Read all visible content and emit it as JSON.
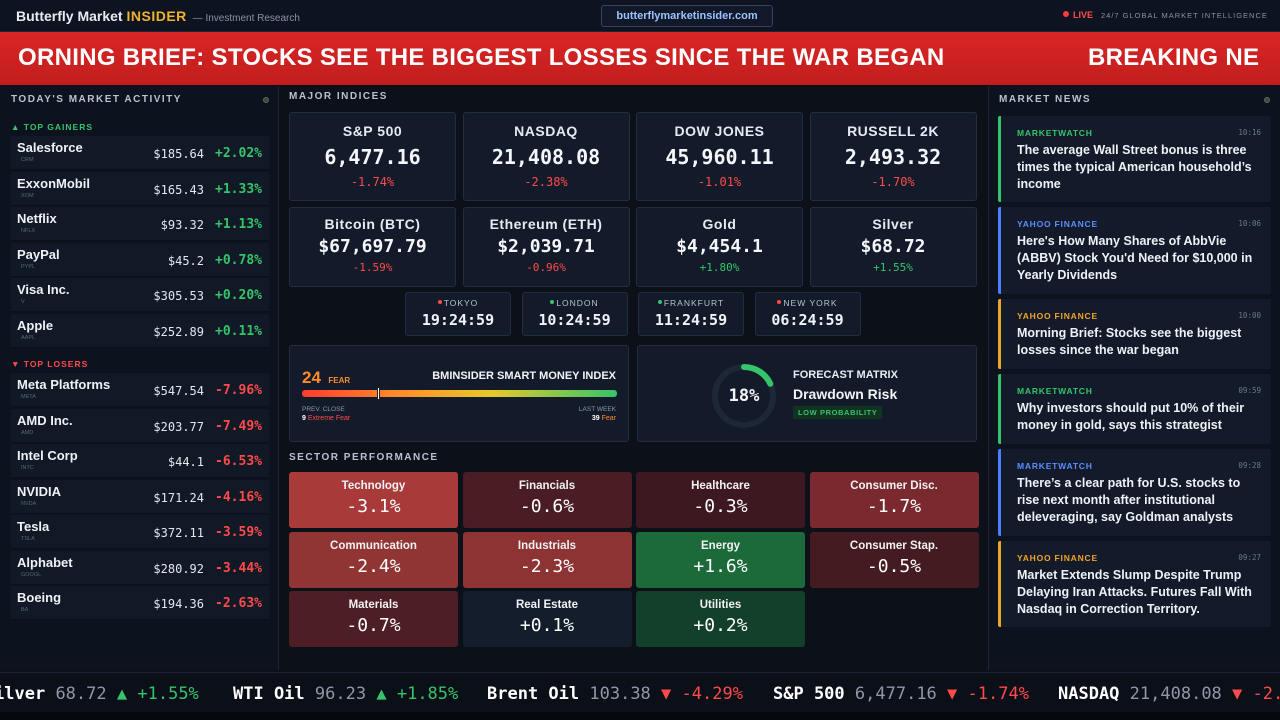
{
  "brand": {
    "name": "Butterfly Market",
    "insider": "INSIDER",
    "dash": "— Investment Research"
  },
  "url": "butterflymarketinsider.com",
  "live": "LIVE",
  "tagline": "24/7 GLOBAL MARKET INTELLIGENCE",
  "banner": {
    "text1": "ORNING BRIEF: STOCKS SEE THE BIGGEST LOSSES SINCE THE WAR BEGAN",
    "text2": "BREAKING NE"
  },
  "left": {
    "title": "TODAY'S MARKET ACTIVITY",
    "gainers_label": "▲ TOP GAINERS",
    "losers_label": "▼ TOP LOSERS",
    "gainers": [
      {
        "name": "Salesforce",
        "ticker": "CRM",
        "price": "$185.64",
        "change": "+2.02%"
      },
      {
        "name": "ExxonMobil",
        "ticker": "XOM",
        "price": "$165.43",
        "change": "+1.33%"
      },
      {
        "name": "Netflix",
        "ticker": "NFLX",
        "price": "$93.32",
        "change": "+1.13%"
      },
      {
        "name": "PayPal",
        "ticker": "PYPL",
        "price": "$45.2",
        "change": "+0.78%"
      },
      {
        "name": "Visa Inc.",
        "ticker": "V",
        "price": "$305.53",
        "change": "+0.20%"
      },
      {
        "name": "Apple",
        "ticker": "AAPL",
        "price": "$252.89",
        "change": "+0.11%"
      }
    ],
    "losers": [
      {
        "name": "Meta Platforms",
        "ticker": "META",
        "price": "$547.54",
        "change": "-7.96%"
      },
      {
        "name": "AMD Inc.",
        "ticker": "AMD",
        "price": "$203.77",
        "change": "-7.49%"
      },
      {
        "name": "Intel Corp",
        "ticker": "INTC",
        "price": "$44.1",
        "change": "-6.53%"
      },
      {
        "name": "NVIDIA",
        "ticker": "NVDA",
        "price": "$171.24",
        "change": "-4.16%"
      },
      {
        "name": "Tesla",
        "ticker": "TSLA",
        "price": "$372.11",
        "change": "-3.59%"
      },
      {
        "name": "Alphabet",
        "ticker": "GOOGL",
        "price": "$280.92",
        "change": "-3.44%"
      },
      {
        "name": "Boeing",
        "ticker": "BA",
        "price": "$194.36",
        "change": "-2.63%"
      }
    ]
  },
  "indices": {
    "title": "MAJOR INDICES",
    "row1": [
      {
        "name": "S&P 500",
        "value": "6,477.16",
        "change": "-1.74%"
      },
      {
        "name": "NASDAQ",
        "value": "21,408.08",
        "change": "-2.38%"
      },
      {
        "name": "DOW JONES",
        "value": "45,960.11",
        "change": "-1.01%"
      },
      {
        "name": "RUSSELL 2K",
        "value": "2,493.32",
        "change": "-1.70%"
      }
    ],
    "row2": [
      {
        "name": "Bitcoin (BTC)",
        "value": "$67,697.79",
        "change": "-1.59%"
      },
      {
        "name": "Ethereum (ETH)",
        "value": "$2,039.71",
        "change": "-0.96%"
      },
      {
        "name": "Gold",
        "value": "$4,454.1",
        "change": "+1.80%"
      },
      {
        "name": "Silver",
        "value": "$68.72",
        "change": "+1.55%"
      }
    ]
  },
  "clocks": [
    {
      "city": "TOKYO",
      "time": "19:24:59",
      "color": "#ff4a4a"
    },
    {
      "city": "LONDON",
      "time": "10:24:59",
      "color": "#35c46a"
    },
    {
      "city": "FRANKFURT",
      "time": "11:24:59",
      "color": "#35c46a"
    },
    {
      "city": "NEW YORK",
      "time": "06:24:59",
      "color": "#ff4a4a"
    }
  ],
  "smart_money": {
    "value": "24",
    "label": "FEAR",
    "title": "BMINSIDER SMART MONEY INDEX",
    "prev_label": "PREV. CLOSE",
    "prev_value": "9",
    "prev_text": "Extreme Fear",
    "week_label": "LAST WEEK",
    "week_value": "39",
    "week_text": "Fear",
    "gauge_fraction": 0.24
  },
  "forecast": {
    "pct": "18%",
    "title": "FORECAST MATRIX",
    "subtitle": "Drawdown Risk",
    "badge": "LOW PROBABILITY",
    "fraction": 0.18
  },
  "sectors": {
    "title": "SECTOR PERFORMANCE",
    "items": [
      {
        "name": "Technology",
        "value": "-3.1%",
        "bg": "#a83a3a"
      },
      {
        "name": "Financials",
        "value": "-0.6%",
        "bg": "#4a1d24"
      },
      {
        "name": "Healthcare",
        "value": "-0.3%",
        "bg": "#3d1820"
      },
      {
        "name": "Consumer Disc.",
        "value": "-1.7%",
        "bg": "#7a2a2e"
      },
      {
        "name": "Communication",
        "value": "-2.4%",
        "bg": "#913434"
      },
      {
        "name": "Industrials",
        "value": "-2.3%",
        "bg": "#8d3333"
      },
      {
        "name": "Energy",
        "value": "+1.6%",
        "bg": "#1c6a3a"
      },
      {
        "name": "Consumer Stap.",
        "value": "-0.5%",
        "bg": "#451b22"
      },
      {
        "name": "Materials",
        "value": "-0.7%",
        "bg": "#4d1f25"
      },
      {
        "name": "Real Estate",
        "value": "+0.1%",
        "bg": "#141d2c"
      },
      {
        "name": "Utilities",
        "value": "+0.2%",
        "bg": "#12402a"
      }
    ]
  },
  "news": {
    "title": "MARKET NEWS",
    "items": [
      {
        "source": "MARKETWATCH",
        "time": "10:16",
        "headline": "The average Wall Street bonus is three times the typical American household’s income",
        "color": "#35c46a",
        "src_color": "#35c46a"
      },
      {
        "source": "YAHOO FINANCE",
        "time": "10:06",
        "headline": "Here's How Many Shares of AbbVie (ABBV) Stock You'd Need for $10,000 in Yearly Dividends",
        "color": "#4a7dff",
        "src_color": "#5b8dff"
      },
      {
        "source": "YAHOO FINANCE",
        "time": "10:00",
        "headline": "Morning Brief: Stocks see the biggest losses since the war began",
        "color": "#f0a429",
        "src_color": "#f0a429"
      },
      {
        "source": "MARKETWATCH",
        "time": "09:59",
        "headline": "Why investors should put 10% of their money in gold, says this strategist",
        "color": "#35c46a",
        "src_color": "#35c46a"
      },
      {
        "source": "MARKETWATCH",
        "time": "09:28",
        "headline": "There’s a clear path for U.S. stocks to rise next month after institutional deleveraging, say Goldman analysts",
        "color": "#4a7dff",
        "src_color": "#5b8dff"
      },
      {
        "source": "YAHOO FINANCE",
        "time": "09:27",
        "headline": "Market Extends Slump Despite Trump Delaying Iran Attacks. Futures Fall With Nasdaq in Correction Territory.",
        "color": "#f0a429",
        "src_color": "#f0a429"
      }
    ]
  },
  "ticker": [
    {
      "name": "ilver",
      "price": "68.72",
      "arrow": "▲",
      "change": "+1.55%",
      "dir": "up"
    },
    {
      "name": "WTI Oil",
      "price": "96.23",
      "arrow": "▲",
      "change": "+1.85%",
      "dir": "up"
    },
    {
      "name": "Brent Oil",
      "price": "103.38",
      "arrow": "▼",
      "change": "-4.29%",
      "dir": "dn"
    },
    {
      "name": "S&P 500",
      "price": "6,477.16",
      "arrow": "▼",
      "change": "-1.74%",
      "dir": "dn"
    },
    {
      "name": "NASDAQ",
      "price": "21,408.08",
      "arrow": "▼",
      "change": "-2.",
      "dir": "dn"
    }
  ]
}
